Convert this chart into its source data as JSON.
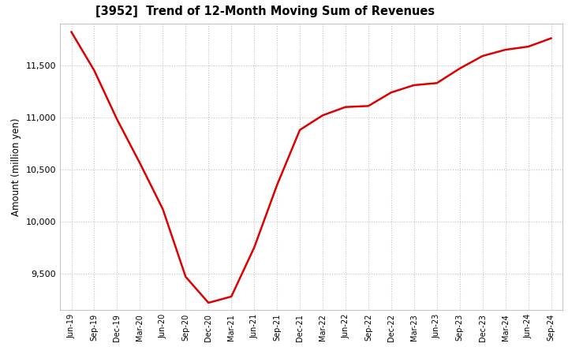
{
  "title": "[3952]  Trend of 12-Month Moving Sum of Revenues",
  "ylabel": "Amount (million yen)",
  "line_color": "#dd0000",
  "line_width": 1.8,
  "background_color": "#ffffff",
  "grid_color": "#bbbbbb",
  "values": [
    11820,
    11450,
    10980,
    10560,
    10120,
    9470,
    9220,
    9280,
    9750,
    10350,
    10880,
    11020,
    11100,
    11110,
    11240,
    11310,
    11330,
    11470,
    11590,
    11650,
    11680,
    11760
  ],
  "yticks": [
    9500,
    10000,
    10500,
    11000,
    11500
  ],
  "ylim": [
    9150,
    11900
  ],
  "xtick_labels": [
    "Jun-19",
    "Sep-19",
    "Dec-19",
    "Mar-20",
    "Jun-20",
    "Sep-20",
    "Dec-20",
    "Mar-21",
    "Jun-21",
    "Sep-21",
    "Dec-21",
    "Mar-22",
    "Jun-22",
    "Sep-22",
    "Dec-22",
    "Mar-23",
    "Jun-23",
    "Sep-23",
    "Dec-23",
    "Mar-24",
    "Jun-24",
    "Sep-24"
  ]
}
